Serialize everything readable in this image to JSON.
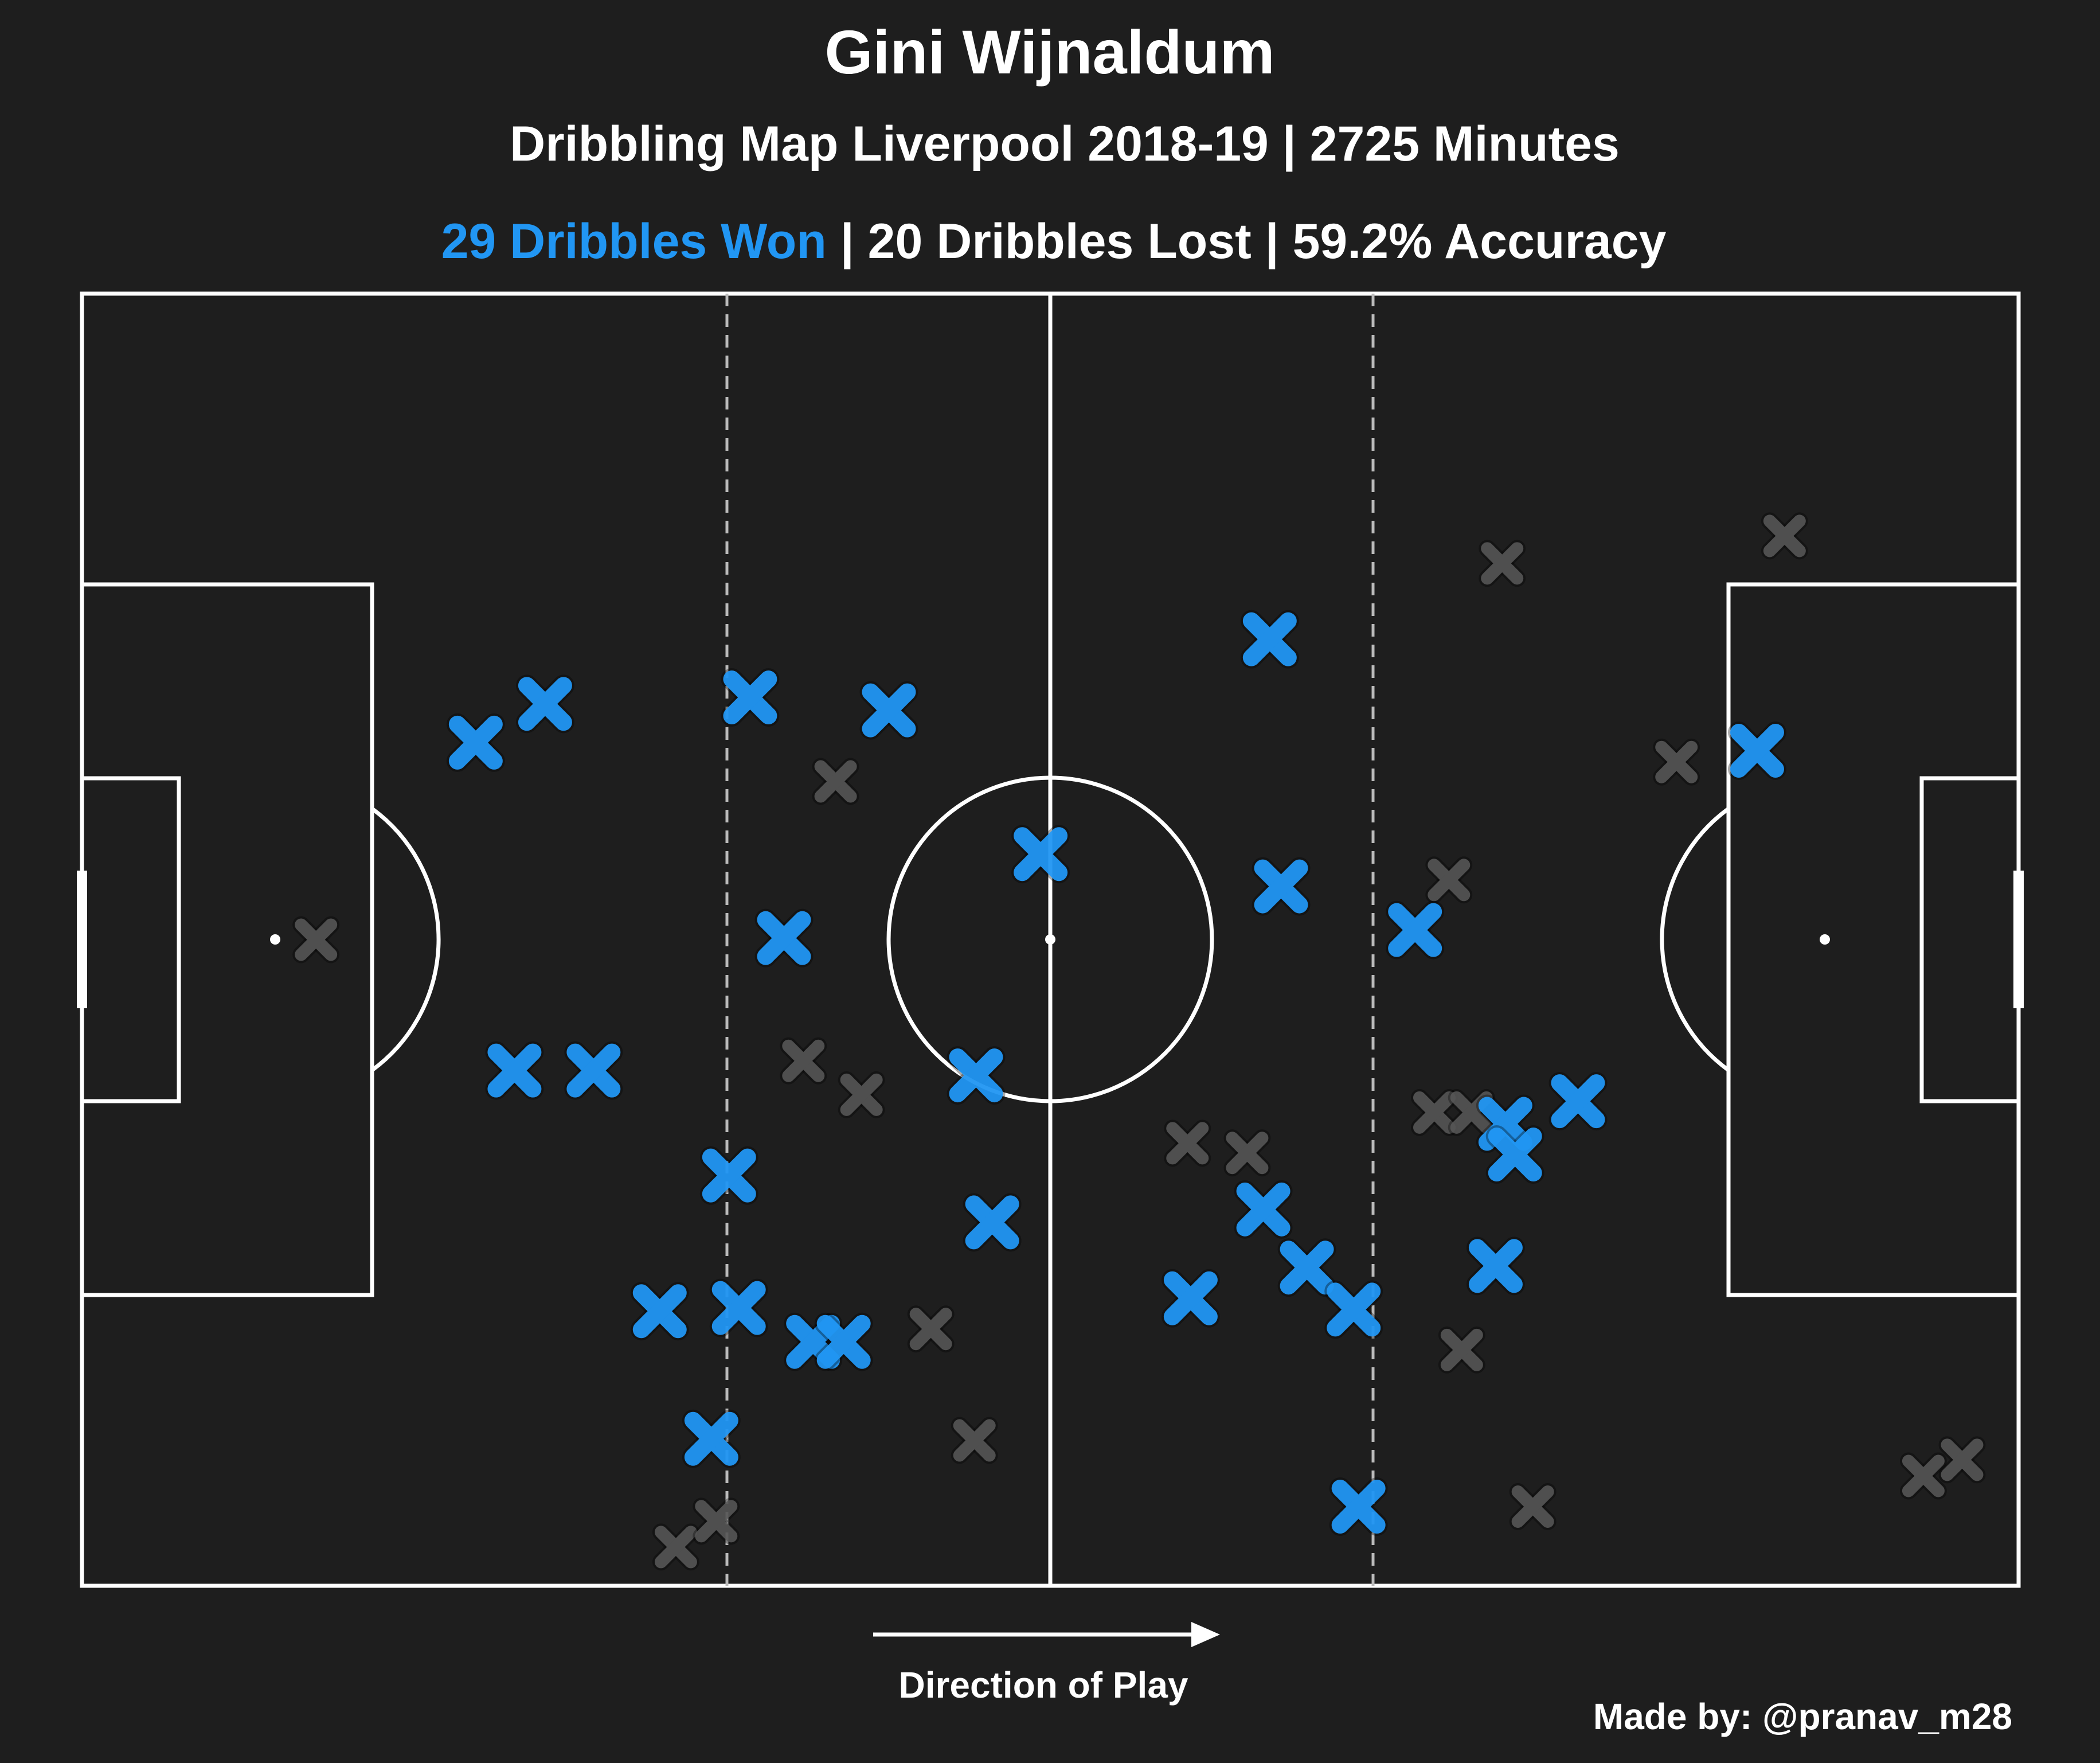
{
  "header": {
    "title": "Gini Wijnaldum",
    "subtitle": "Dribbling Map Liverpool 2018-19 | 2725 Minutes",
    "stats": {
      "won": "29 Dribbles Won",
      "separator": " | ",
      "lost": "20 Dribbles Lost",
      "accuracy": "59.2% Accuracy"
    }
  },
  "footer": {
    "direction_label": "Direction of Play",
    "credit": "Made by: @pranav_m28"
  },
  "colors": {
    "background": "#1e1e1e",
    "lines": "#ffffff",
    "won": "#2196f3",
    "lost": "#555555",
    "zone_lines": "#bbbbbb"
  },
  "chart_data": {
    "type": "scatter",
    "pitch": {
      "length": 120,
      "width": 80
    },
    "xlim": [
      0,
      120
    ],
    "ylim": [
      0,
      80
    ],
    "series": [
      {
        "name": "Dribbles Won",
        "marker": "x",
        "color": "#2196f3",
        "points": [
          [
            24.4,
            27.8
          ],
          [
            28.7,
            25.4
          ],
          [
            41.4,
            25.0
          ],
          [
            50.0,
            25.8
          ],
          [
            43.5,
            39.9
          ],
          [
            59.4,
            34.7
          ],
          [
            73.6,
            21.4
          ],
          [
            74.3,
            36.7
          ],
          [
            73.2,
            56.7
          ],
          [
            79.1,
            75.1
          ],
          [
            103.8,
            28.3
          ],
          [
            82.6,
            39.4
          ],
          [
            26.8,
            48.1
          ],
          [
            31.7,
            48.1
          ],
          [
            40.1,
            54.6
          ],
          [
            55.4,
            48.4
          ],
          [
            56.4,
            57.5
          ],
          [
            35.8,
            63.0
          ],
          [
            40.7,
            62.8
          ],
          [
            45.3,
            64.9
          ],
          [
            47.2,
            64.9
          ],
          [
            39.0,
            70.9
          ],
          [
            68.7,
            62.2
          ],
          [
            75.9,
            60.3
          ],
          [
            78.8,
            62.9
          ],
          [
            87.6,
            60.2
          ],
          [
            88.2,
            51.4
          ],
          [
            88.8,
            53.3
          ],
          [
            92.7,
            50.0
          ]
        ]
      },
      {
        "name": "Dribbles Lost",
        "marker": "x",
        "color": "#555555",
        "points": [
          [
            14.5,
            40.0
          ],
          [
            46.7,
            30.2
          ],
          [
            88.0,
            16.7
          ],
          [
            84.7,
            36.3
          ],
          [
            98.8,
            29.0
          ],
          [
            105.5,
            15.0
          ],
          [
            44.7,
            47.5
          ],
          [
            48.3,
            49.6
          ],
          [
            68.5,
            52.6
          ],
          [
            72.2,
            53.2
          ],
          [
            83.8,
            50.7
          ],
          [
            86.1,
            50.7
          ],
          [
            52.6,
            64.1
          ],
          [
            55.3,
            71.0
          ],
          [
            36.8,
            77.6
          ],
          [
            39.3,
            76.0
          ],
          [
            85.5,
            65.4
          ],
          [
            89.9,
            75.1
          ],
          [
            114.1,
            73.2
          ],
          [
            116.5,
            72.2
          ]
        ]
      }
    ]
  }
}
